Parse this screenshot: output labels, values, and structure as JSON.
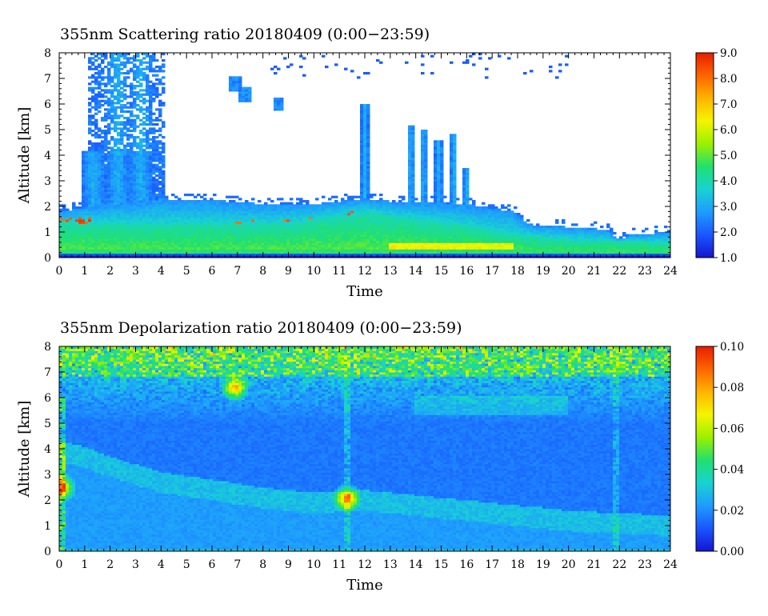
{
  "chart_data": [
    {
      "type": "heatmap",
      "title": "355nm Scattering ratio  20180409 (0:00−23:59)",
      "xlabel": "Time",
      "ylabel": "Altitude [km]",
      "xlim": [
        0,
        24
      ],
      "ylim": [
        0,
        8
      ],
      "x_ticks": [
        "0",
        "1",
        "2",
        "3",
        "4",
        "5",
        "6",
        "7",
        "8",
        "9",
        "10",
        "11",
        "12",
        "13",
        "14",
        "15",
        "16",
        "17",
        "18",
        "19",
        "20",
        "21",
        "22",
        "23",
        "24"
      ],
      "y_ticks": [
        "0",
        "1",
        "2",
        "3",
        "4",
        "5",
        "6",
        "7",
        "8"
      ],
      "colorbar": {
        "min": 1.0,
        "max": 9.0,
        "ticks": [
          "1.0",
          "2.0",
          "3.0",
          "4.0",
          "5.0",
          "6.0",
          "7.0",
          "8.0",
          "9.0"
        ],
        "colors": [
          "#1414d2",
          "#1a56ff",
          "#1e9cff",
          "#18d2d2",
          "#20e070",
          "#9cf000",
          "#f5f500",
          "#ffb400",
          "#ff6400",
          "#e61e00"
        ]
      },
      "features": {
        "background_layer_top_km": [
          [
            0,
            1.8
          ],
          [
            1.2,
            2.0
          ],
          [
            4,
            2.3
          ],
          [
            6,
            2.25
          ],
          [
            8,
            2.1
          ],
          [
            10,
            2.1
          ],
          [
            12,
            2.3
          ],
          [
            13,
            2.2
          ],
          [
            16,
            2.1
          ],
          [
            17.8,
            1.8
          ],
          [
            18.5,
            1.3
          ],
          [
            21.5,
            1.1
          ],
          [
            22,
            0.7
          ],
          [
            22.4,
            0.9
          ],
          [
            24,
            1.0
          ]
        ],
        "aerosol_layer_top_km": [
          [
            0,
            1.4
          ],
          [
            3,
            1.3
          ],
          [
            9,
            1.35
          ],
          [
            12,
            1.75
          ],
          [
            16,
            1.25
          ],
          [
            18,
            0.9
          ],
          [
            20,
            0.7
          ],
          [
            24,
            0.6
          ]
        ],
        "cloud_columns": [
          {
            "time": 1.35,
            "top_km": 4.2
          },
          {
            "time": 2.3,
            "top_km": 8.0
          },
          {
            "time": 3.2,
            "top_km": 8.0
          },
          {
            "time": 12.0,
            "top_km": 6.0
          },
          {
            "time": 13.8,
            "top_km": 5.2
          },
          {
            "time": 14.3,
            "top_km": 5.0
          },
          {
            "time": 14.9,
            "top_km": 4.6
          },
          {
            "time": 15.5,
            "top_km": 4.8
          },
          {
            "time": 16.0,
            "top_km": 3.5
          }
        ],
        "isolated_clouds": [
          {
            "time": 6.9,
            "alt_km": 6.8
          },
          {
            "time": 7.3,
            "alt_km": 6.35
          },
          {
            "time": 8.6,
            "alt_km": 6.0
          }
        ]
      }
    },
    {
      "type": "heatmap",
      "title": "355nm Depolarization ratio  20180409 (0:00−23:59)",
      "xlabel": "Time",
      "ylabel": "Altitude [km]",
      "xlim": [
        0,
        24
      ],
      "ylim": [
        0,
        8
      ],
      "x_ticks": [
        "0",
        "1",
        "2",
        "3",
        "4",
        "5",
        "6",
        "7",
        "8",
        "9",
        "10",
        "11",
        "12",
        "13",
        "14",
        "15",
        "16",
        "17",
        "18",
        "19",
        "20",
        "21",
        "22",
        "23",
        "24"
      ],
      "y_ticks": [
        "0",
        "1",
        "2",
        "3",
        "4",
        "5",
        "6",
        "7",
        "8"
      ],
      "colorbar": {
        "min": 0.0,
        "max": 0.1,
        "ticks": [
          "0.00",
          "0.02",
          "0.04",
          "0.06",
          "0.08",
          "0.10"
        ],
        "colors": [
          "#1414d2",
          "#1a56ff",
          "#1e9cff",
          "#18d2d2",
          "#20e070",
          "#9cf000",
          "#f5f500",
          "#ffb400",
          "#ff6400",
          "#e61e00"
        ]
      },
      "features": {
        "elevated_layer_top_km": [
          [
            0,
            4.0
          ],
          [
            1,
            3.8
          ],
          [
            2,
            3.4
          ],
          [
            4,
            2.8
          ],
          [
            6,
            2.5
          ],
          [
            8,
            2.2
          ],
          [
            10,
            2.0
          ],
          [
            12,
            2.1
          ],
          [
            14,
            1.9
          ],
          [
            16,
            1.7
          ],
          [
            18,
            1.5
          ],
          [
            20,
            1.3
          ],
          [
            24,
            1.1
          ]
        ],
        "high_depol_patches": [
          {
            "time": 6.9,
            "alt_km": 6.4
          },
          {
            "time": 11.3,
            "alt_km": 2.1
          },
          {
            "time": 0.1,
            "alt_km": 2.5
          }
        ]
      }
    }
  ]
}
